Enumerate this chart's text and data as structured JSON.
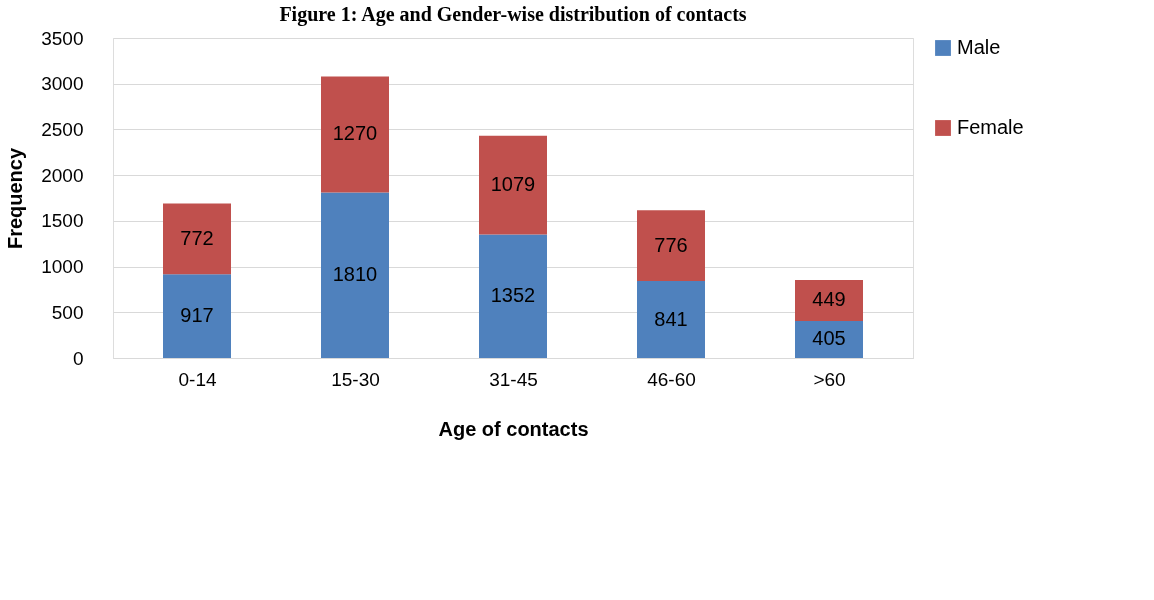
{
  "chart_data": {
    "type": "bar",
    "title": "Figure 1: Age and Gender-wise distribution of contacts",
    "xlabel": "Age of contacts",
    "ylabel": "Frequency",
    "categories": [
      "0-14",
      "15-30",
      "31-45",
      "46-60",
      ">60"
    ],
    "series": [
      {
        "name": "Male",
        "color": "#4f81bd",
        "values": [
          917,
          1810,
          1352,
          841,
          405
        ]
      },
      {
        "name": "Female",
        "color": "#c0504d",
        "values": [
          772,
          1270,
          1079,
          776,
          449
        ]
      }
    ],
    "stacked": true,
    "data_labels": true,
    "ylim": [
      0,
      3500
    ],
    "yticks": [
      0,
      500,
      1000,
      1500,
      2000,
      2500,
      3000,
      3500
    ],
    "grid": "y",
    "legend": "right"
  }
}
